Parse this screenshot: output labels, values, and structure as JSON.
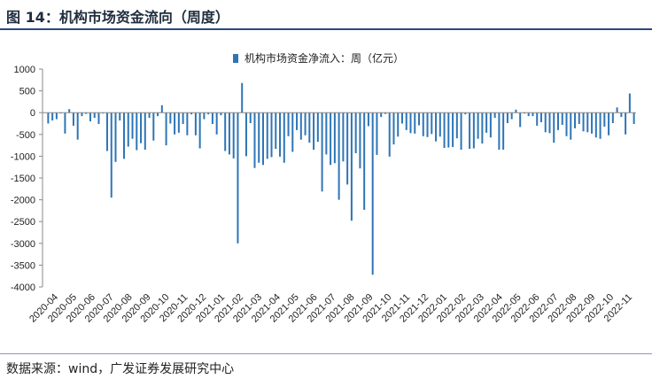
{
  "figure": {
    "title": "图 14：机构市场资金流向（周度）",
    "source": "数据来源：wind，广发证券发展研究中心"
  },
  "colors": {
    "bar": "#2e75b6",
    "axis": "#888888",
    "text": "#222222"
  },
  "chart_data": {
    "type": "bar",
    "title": "",
    "xlabel": "",
    "ylabel": "",
    "ylim": [
      -4000,
      1000
    ],
    "yticks": [
      1000,
      500,
      0,
      -500,
      -1000,
      -1500,
      -2000,
      -2500,
      -3000,
      -3500,
      -4000
    ],
    "grid": false,
    "legend_position": "top-center",
    "x_tick_labels": [
      "2020-04",
      "2020-05",
      "2020-06",
      "2020-07",
      "2020-08",
      "2020-09",
      "2020-10",
      "2020-11",
      "2020-12",
      "2021-01",
      "2021-02",
      "2021-03",
      "2021-04",
      "2021-05",
      "2021-06",
      "2021-07",
      "2021-08",
      "2021-09",
      "2021-10",
      "2021-11",
      "2021-12",
      "2022-01",
      "2022-02",
      "2022-03",
      "2022-04",
      "2022-05",
      "2022-06",
      "2022-07",
      "2022-08",
      "2022-09",
      "2022-10",
      "2022-11"
    ],
    "series": [
      {
        "name": "机构市场资金净流入：周（亿元）",
        "values": [
          -250,
          -180,
          -150,
          -20,
          -480,
          80,
          -300,
          -620,
          -80,
          -30,
          -200,
          -120,
          -260,
          -20,
          -880,
          -1950,
          -1130,
          -180,
          -1060,
          -780,
          -600,
          -860,
          -700,
          -850,
          -120,
          -640,
          -80,
          170,
          -750,
          -250,
          -500,
          -460,
          -260,
          -520,
          -40,
          -520,
          -820,
          -150,
          -40,
          -260,
          -500,
          -60,
          -880,
          -960,
          -1050,
          -3000,
          680,
          -1000,
          -240,
          -1270,
          -1150,
          -1200,
          -1060,
          -1020,
          -830,
          -1010,
          -1150,
          -540,
          -900,
          -400,
          -620,
          -520,
          -690,
          -850,
          -670,
          -1810,
          -960,
          -1200,
          -1160,
          -2000,
          -1120,
          -1650,
          -2480,
          -930,
          -1280,
          -2230,
          -310,
          -3720,
          -970,
          -100,
          -30,
          -1010,
          -730,
          -550,
          -250,
          -400,
          -470,
          -480,
          -290,
          -540,
          -560,
          -490,
          -660,
          -550,
          -810,
          -800,
          -790,
          -590,
          -850,
          -40,
          -830,
          -820,
          -600,
          -710,
          -460,
          -570,
          -120,
          -850,
          -850,
          -240,
          -150,
          70,
          -330,
          -20,
          -80,
          -80,
          -300,
          -220,
          -450,
          -470,
          -690,
          -400,
          -280,
          -540,
          -620,
          -360,
          -260,
          -430,
          -450,
          -480,
          -570,
          -600,
          -320,
          -520,
          -240,
          120,
          -100,
          -500,
          440,
          -260
        ]
      }
    ]
  }
}
